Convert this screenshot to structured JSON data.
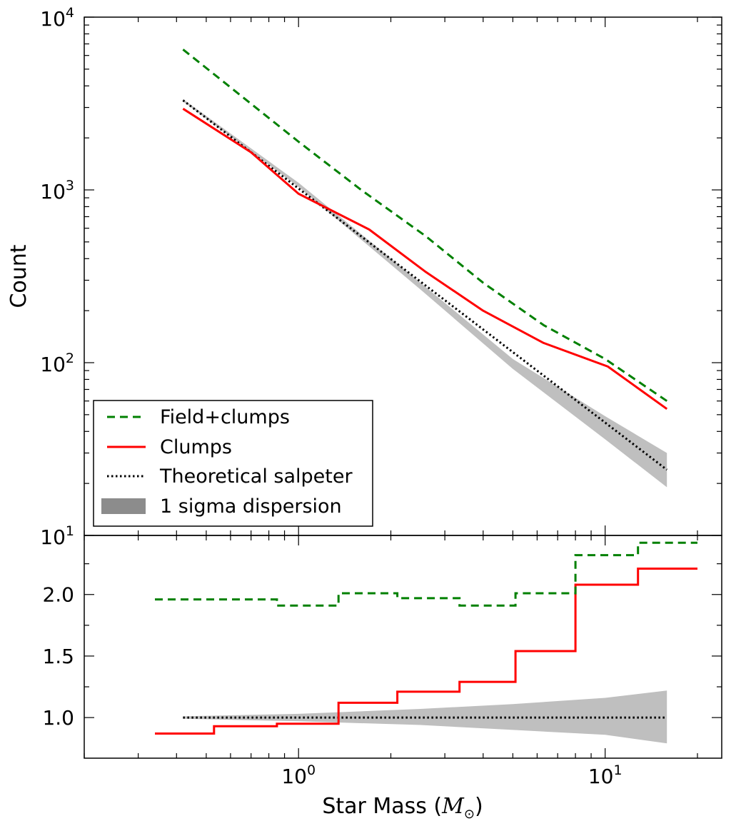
{
  "chart_data": [
    {
      "type": "line",
      "panel": "top",
      "xscale": "log",
      "yscale": "log",
      "xlim": [
        0.2,
        24
      ],
      "ylim": [
        10,
        10000
      ],
      "ylabel": "Count",
      "ytick_labels": [
        {
          "base": "10",
          "exp": "1"
        },
        {
          "base": "10",
          "exp": "2"
        },
        {
          "base": "10",
          "exp": "3"
        },
        {
          "base": "10",
          "exp": "4"
        }
      ],
      "legend_position": "lower-left",
      "colors": {
        "field_clumps": "#008000",
        "clumps": "#ff0000",
        "theory": "#000000",
        "band": "#bfbfbf",
        "legend_band": "#8c8c8c"
      },
      "series": [
        {
          "name": "Field+clumps",
          "style": "dashed",
          "x": [
            0.42,
            1.0,
            1.6,
            2.6,
            4.0,
            6.3,
            10.0,
            15.9
          ],
          "y": [
            6500,
            1900,
            1000,
            540,
            290,
            165,
            105,
            60
          ]
        },
        {
          "name": "Clumps",
          "style": "solid",
          "x": [
            0.42,
            0.7,
            1.0,
            1.7,
            2.6,
            4.0,
            6.3,
            10.2,
            15.9
          ],
          "y": [
            2950,
            1650,
            950,
            590,
            335,
            200,
            130,
            95,
            54
          ]
        },
        {
          "name": "Theoretical salpeter",
          "style": "dotted",
          "x": [
            0.42,
            15.9
          ],
          "y": [
            3300,
            24
          ]
        },
        {
          "name": "1 sigma dispersion",
          "style": "band",
          "x": [
            0.42,
            1.0,
            2.5,
            5.0,
            10.0,
            15.9
          ],
          "y_low": [
            3250,
            1040,
            265,
            92,
            36,
            19
          ],
          "y_high": [
            3350,
            1100,
            290,
            105,
            49,
            30
          ]
        }
      ]
    },
    {
      "type": "line",
      "panel": "bottom",
      "xscale": "log",
      "xlim": [
        0.2,
        24
      ],
      "ylim": [
        0.67,
        2.48
      ],
      "xlabel": {
        "text": "Star Mass (",
        "symbol": "M",
        "sub": "⊙",
        "close": ")"
      },
      "xtick_labels": [
        {
          "base": "10",
          "exp": "0"
        },
        {
          "base": "10",
          "exp": "1"
        }
      ],
      "ytick_labels": [
        "1.0",
        "1.5",
        "2.0"
      ],
      "yticks": [
        1.0,
        1.5,
        2.0
      ],
      "series": [
        {
          "name": "Field+clumps",
          "style": "dashed-step",
          "edges": [
            0.34,
            0.85,
            1.35,
            2.1,
            3.35,
            5.1,
            8.0,
            12.8,
            20.0
          ],
          "values": [
            1.96,
            1.91,
            2.01,
            1.97,
            1.91,
            2.01,
            2.32,
            2.42
          ]
        },
        {
          "name": "Clumps",
          "style": "solid-step",
          "edges": [
            0.34,
            0.53,
            0.85,
            1.35,
            2.1,
            3.35,
            5.1,
            8.0,
            12.8,
            20.0
          ],
          "values": [
            0.87,
            0.93,
            0.95,
            1.12,
            1.21,
            1.29,
            1.54,
            2.08,
            2.21
          ]
        },
        {
          "name": "Theoretical salpeter",
          "style": "dotted",
          "x": [
            0.42,
            15.9
          ],
          "y": [
            1.0,
            1.0
          ]
        },
        {
          "name": "1 sigma dispersion",
          "style": "band",
          "x": [
            0.42,
            1.0,
            2.5,
            5.0,
            10.0,
            15.9
          ],
          "y_low": [
            0.99,
            0.97,
            0.94,
            0.9,
            0.86,
            0.79
          ],
          "y_high": [
            1.01,
            1.03,
            1.07,
            1.11,
            1.16,
            1.22
          ]
        }
      ]
    }
  ]
}
